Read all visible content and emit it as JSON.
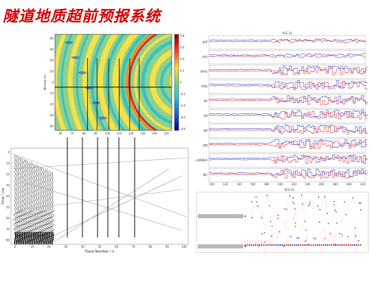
{
  "title": "隧道地质超前预报系统",
  "heatmap": {
    "ylabel": "Window ms",
    "colorbar_ticks": [
      "0.8",
      "0.6",
      "0.4",
      "0.2",
      "0",
      "-0.2",
      "-0.4",
      "-0.6",
      "-0.8"
    ],
    "x_ticks": [
      "60",
      "70",
      "80",
      "90",
      "100",
      "110",
      "120",
      "130",
      "140",
      "150"
    ],
    "y_ticks": [
      "-80",
      "-60",
      "-40",
      "-20",
      "0",
      "20",
      "40",
      "60",
      "80"
    ]
  },
  "seismic": {
    "xlabel": "Trace Number / n",
    "ylabel": "Time / ms",
    "x_ticks": [
      "0",
      "10",
      "20",
      "30",
      "40",
      "50",
      "60",
      "70",
      "80",
      "90",
      "100"
    ],
    "y_ticks": [
      "0",
      "10",
      "20",
      "30",
      "40",
      "50",
      "60",
      "70",
      "80"
    ]
  },
  "logs": {
    "header": "XCE-1S",
    "panel_labels": [
      "AVP",
      "AVS",
      "VPVS",
      "RHO",
      "PR",
      "YM",
      "SM",
      "BM",
      "LAMBDA",
      "MU"
    ],
    "x_ticks": [
      "100",
      "120",
      "140",
      "160",
      "180",
      "200",
      "220",
      "240",
      "260",
      "280",
      "300",
      "320"
    ],
    "colors": {
      "a": "#1f3fd6",
      "b": "#e02424"
    }
  },
  "scatter": {
    "header": "XCE-1S"
  }
}
